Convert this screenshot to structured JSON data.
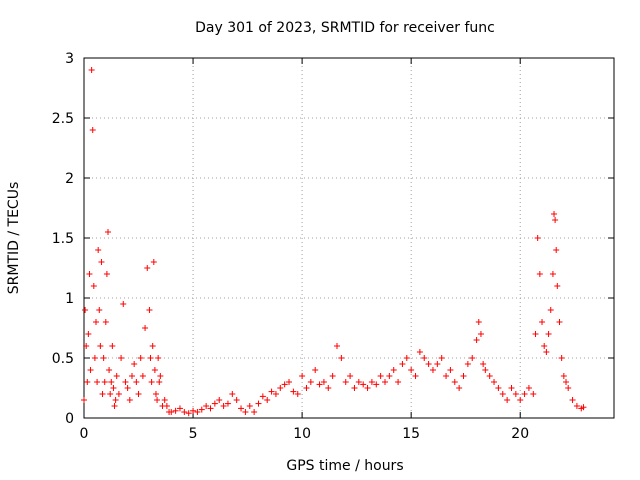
{
  "chart_data": {
    "type": "scatter",
    "title": "Day 301 of 2023, SRMTID for receiver func",
    "xlabel": "GPS time / hours",
    "ylabel": "SRMTID / TECUs",
    "xlim": [
      0,
      24.3
    ],
    "ylim": [
      0,
      3
    ],
    "xticks": [
      0,
      5,
      10,
      15,
      20
    ],
    "xtick_labels": [
      "0",
      "5",
      "10",
      "15",
      "20"
    ],
    "yticks": [
      0,
      0.5,
      1,
      1.5,
      2,
      2.5,
      3
    ],
    "ytick_labels": [
      "0",
      "0.5",
      "1",
      "1.5",
      "2",
      "2.5",
      "3"
    ],
    "grid": true,
    "marker": "plus",
    "color": "#ff0000",
    "series": [
      {
        "name": "SRMTID",
        "x": [
          0.0,
          0.05,
          0.1,
          0.15,
          0.2,
          0.25,
          0.3,
          0.35,
          0.4,
          0.45,
          0.5,
          0.55,
          0.6,
          0.65,
          0.7,
          0.75,
          0.8,
          0.85,
          0.9,
          0.95,
          1.0,
          1.05,
          1.1,
          1.15,
          1.2,
          1.25,
          1.3,
          1.35,
          1.4,
          1.45,
          1.5,
          1.6,
          1.7,
          1.8,
          1.9,
          2.0,
          2.1,
          2.2,
          2.3,
          2.4,
          2.5,
          2.6,
          2.7,
          2.8,
          2.9,
          3.0,
          3.05,
          3.1,
          3.15,
          3.2,
          3.25,
          3.3,
          3.35,
          3.4,
          3.45,
          3.5,
          3.6,
          3.7,
          3.8,
          3.9,
          4.0,
          4.2,
          4.4,
          4.6,
          4.8,
          5.0,
          5.2,
          5.4,
          5.6,
          5.8,
          6.0,
          6.2,
          6.4,
          6.6,
          6.8,
          7.0,
          7.2,
          7.4,
          7.6,
          7.8,
          8.0,
          8.2,
          8.4,
          8.6,
          8.8,
          9.0,
          9.2,
          9.4,
          9.6,
          9.8,
          10.0,
          10.2,
          10.4,
          10.6,
          10.8,
          11.0,
          11.2,
          11.4,
          11.6,
          11.8,
          12.0,
          12.2,
          12.4,
          12.6,
          12.8,
          13.0,
          13.2,
          13.4,
          13.6,
          13.8,
          14.0,
          14.2,
          14.4,
          14.6,
          14.8,
          15.0,
          15.2,
          15.4,
          15.6,
          15.8,
          16.0,
          16.2,
          16.4,
          16.6,
          16.8,
          17.0,
          17.2,
          17.4,
          17.6,
          17.8,
          18.0,
          18.1,
          18.2,
          18.3,
          18.4,
          18.6,
          18.8,
          19.0,
          19.2,
          19.4,
          19.6,
          19.8,
          20.0,
          20.2,
          20.4,
          20.6,
          20.7,
          20.8,
          20.9,
          21.0,
          21.1,
          21.2,
          21.3,
          21.4,
          21.5,
          21.55,
          21.6,
          21.65,
          21.7,
          21.8,
          21.9,
          22.0,
          22.1,
          22.2,
          22.4,
          22.6,
          22.8,
          22.9
        ],
        "y": [
          0.15,
          0.9,
          0.6,
          0.3,
          0.7,
          1.2,
          0.4,
          2.9,
          2.4,
          1.1,
          0.5,
          0.8,
          0.3,
          1.4,
          0.9,
          0.6,
          1.3,
          0.2,
          0.5,
          0.3,
          0.8,
          1.2,
          1.55,
          0.4,
          0.2,
          0.3,
          0.6,
          0.25,
          0.1,
          0.15,
          0.35,
          0.2,
          0.5,
          0.95,
          0.3,
          0.25,
          0.15,
          0.35,
          0.45,
          0.3,
          0.2,
          0.5,
          0.35,
          0.75,
          1.25,
          0.9,
          0.5,
          0.3,
          0.6,
          1.3,
          0.4,
          0.2,
          0.15,
          0.5,
          0.3,
          0.35,
          0.1,
          0.15,
          0.1,
          0.05,
          0.05,
          0.06,
          0.08,
          0.05,
          0.04,
          0.06,
          0.05,
          0.07,
          0.1,
          0.08,
          0.12,
          0.15,
          0.1,
          0.12,
          0.2,
          0.15,
          0.08,
          0.05,
          0.1,
          0.05,
          0.12,
          0.18,
          0.15,
          0.22,
          0.2,
          0.25,
          0.28,
          0.3,
          0.22,
          0.2,
          0.35,
          0.25,
          0.3,
          0.4,
          0.28,
          0.3,
          0.25,
          0.35,
          0.6,
          0.5,
          0.3,
          0.35,
          0.25,
          0.3,
          0.28,
          0.25,
          0.3,
          0.28,
          0.35,
          0.3,
          0.35,
          0.4,
          0.3,
          0.45,
          0.5,
          0.4,
          0.35,
          0.55,
          0.5,
          0.45,
          0.4,
          0.45,
          0.5,
          0.35,
          0.4,
          0.3,
          0.25,
          0.35,
          0.45,
          0.5,
          0.65,
          0.8,
          0.7,
          0.45,
          0.4,
          0.35,
          0.3,
          0.25,
          0.2,
          0.15,
          0.25,
          0.2,
          0.15,
          0.2,
          0.25,
          0.2,
          0.7,
          1.5,
          1.2,
          0.8,
          0.6,
          0.55,
          0.7,
          0.9,
          1.2,
          1.7,
          1.65,
          1.4,
          1.1,
          0.8,
          0.5,
          0.35,
          0.3,
          0.25,
          0.15,
          0.1,
          0.08,
          0.09
        ]
      }
    ]
  }
}
